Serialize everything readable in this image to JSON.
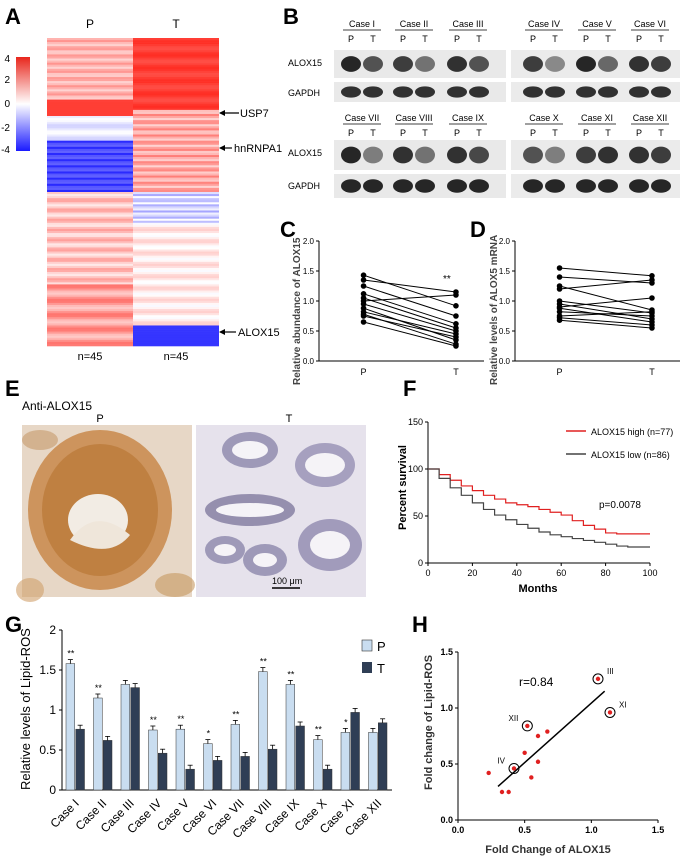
{
  "panels": {
    "a": "A",
    "b": "B",
    "c": "C",
    "d": "D",
    "e": "E",
    "f": "F",
    "g": "G",
    "h": "H"
  },
  "heatmap": {
    "columns": [
      "P",
      "T"
    ],
    "scale_ticks": [
      "4",
      "2",
      "0",
      "-2",
      "-4"
    ],
    "genes": [
      "USP7",
      "hnRNPA1",
      "ALOX15"
    ],
    "n_labels": [
      "n=45",
      "n=45"
    ]
  },
  "western": {
    "top_cases": [
      "Case I",
      "Case II",
      "Case III",
      "Case IV",
      "Case V",
      "Case VI"
    ],
    "bottom_cases": [
      "Case VII",
      "Case VIII",
      "Case IX",
      "Case X",
      "Case XI",
      "Case XII"
    ],
    "pt": [
      "P",
      "T"
    ],
    "rows": [
      "ALOX15",
      "GAPDH"
    ]
  },
  "panel_e": {
    "title": "Anti-ALOX15",
    "left": "P",
    "right": "T",
    "scalebar": "100 μm"
  },
  "chart_data": [
    {
      "id": "C",
      "type": "line",
      "title": "",
      "xlabel": "",
      "ylabel": "Relative abundance of ALOX15",
      "categories": [
        "P",
        "T"
      ],
      "ylim": [
        0,
        2.0
      ],
      "yticks": [
        "0.0",
        "0.5",
        "1.0",
        "1.5",
        "2.0"
      ],
      "annotation": "**",
      "pairs": [
        [
          1.43,
          0.92
        ],
        [
          1.35,
          1.15
        ],
        [
          1.25,
          0.75
        ],
        [
          1.12,
          0.62
        ],
        [
          1.05,
          0.55
        ],
        [
          1.0,
          1.1
        ],
        [
          0.95,
          0.5
        ],
        [
          0.88,
          0.35
        ],
        [
          0.82,
          0.45
        ],
        [
          0.78,
          0.28
        ],
        [
          0.75,
          0.4
        ],
        [
          0.65,
          0.25
        ]
      ]
    },
    {
      "id": "D",
      "type": "line",
      "xlabel": "",
      "ylabel": "Relative levels of ALOX5 mRNA",
      "categories": [
        "P",
        "T"
      ],
      "ylim": [
        0,
        2.0
      ],
      "yticks": [
        "0.0",
        "0.5",
        "1.0",
        "1.5",
        "2.0"
      ],
      "pairs": [
        [
          1.55,
          1.42
        ],
        [
          1.4,
          1.3
        ],
        [
          1.25,
          0.85
        ],
        [
          1.2,
          1.35
        ],
        [
          1.0,
          0.8
        ],
        [
          0.95,
          0.7
        ],
        [
          0.9,
          1.05
        ],
        [
          0.88,
          0.65
        ],
        [
          0.82,
          0.75
        ],
        [
          0.75,
          0.82
        ],
        [
          0.72,
          0.6
        ],
        [
          0.68,
          0.55
        ]
      ]
    },
    {
      "id": "F",
      "type": "line",
      "xlabel": "Months",
      "ylabel": "Percent survival",
      "xlim": [
        0,
        100
      ],
      "ylim": [
        0,
        150
      ],
      "xticks": [
        "0",
        "20",
        "40",
        "60",
        "80",
        "100"
      ],
      "yticks": [
        "0",
        "50",
        "100",
        "150"
      ],
      "pvalue": "p=0.0078",
      "series": [
        {
          "name": "ALOX15 high (n=77)",
          "color": "#e02020",
          "x": [
            0,
            5,
            10,
            15,
            20,
            25,
            30,
            35,
            40,
            45,
            50,
            55,
            60,
            65,
            70,
            75,
            80,
            85,
            90,
            95,
            100
          ],
          "y": [
            100,
            94,
            88,
            82,
            77,
            72,
            68,
            64,
            62,
            60,
            57,
            54,
            51,
            45,
            40,
            36,
            32,
            31,
            31,
            31,
            31
          ]
        },
        {
          "name": "ALOX15 low (n=86)",
          "color": "#444444",
          "x": [
            0,
            5,
            10,
            15,
            20,
            25,
            30,
            35,
            40,
            45,
            50,
            55,
            60,
            65,
            70,
            75,
            80,
            85,
            90,
            95,
            100
          ],
          "y": [
            100,
            90,
            80,
            72,
            64,
            57,
            51,
            46,
            41,
            37,
            33,
            30,
            28,
            26,
            24,
            22,
            20,
            18,
            17,
            17,
            17
          ]
        }
      ]
    },
    {
      "id": "G",
      "type": "bar",
      "ylabel": "Relative levels of Lipid-ROS",
      "ylim": [
        0,
        2
      ],
      "yticks": [
        "0",
        "0.5",
        "1",
        "1.5",
        "2"
      ],
      "categories": [
        "Case I",
        "Case II",
        "Case III",
        "Case IV",
        "Case V",
        "Case VI",
        "Case VII",
        "Case VIII",
        "Case IX",
        "Case X",
        "Case XI",
        "Case XII"
      ],
      "series": [
        {
          "name": "P",
          "color": "#c9ddf0",
          "values": [
            1.58,
            1.15,
            1.32,
            0.75,
            0.76,
            0.58,
            0.82,
            1.48,
            1.32,
            0.63,
            0.72,
            0.72
          ]
        },
        {
          "name": "T",
          "color": "#2f3e55",
          "values": [
            0.76,
            0.62,
            1.28,
            0.46,
            0.26,
            0.37,
            0.42,
            0.51,
            0.8,
            0.26,
            0.97,
            0.84
          ]
        }
      ],
      "significance": [
        "**",
        "**",
        "",
        "**",
        "**",
        "*",
        "**",
        "**",
        "**",
        "**",
        "*",
        ""
      ]
    },
    {
      "id": "H",
      "type": "scatter",
      "xlabel": "Fold Change of ALOX15",
      "ylabel": "Fold change of Lipid-ROS",
      "xlim": [
        0,
        1.5
      ],
      "ylim": [
        0,
        1.5
      ],
      "xticks": [
        "0.0",
        "0.5",
        "1.0",
        "1.5"
      ],
      "yticks": [
        "0.0",
        "0.5",
        "1.0",
        "1.5"
      ],
      "r": "r=0.84",
      "points": [
        [
          0.23,
          0.42
        ],
        [
          0.33,
          0.25
        ],
        [
          0.38,
          0.25
        ],
        [
          0.42,
          0.46
        ],
        [
          0.5,
          0.6
        ],
        [
          0.52,
          0.84
        ],
        [
          0.55,
          0.38
        ],
        [
          0.6,
          0.52
        ],
        [
          0.6,
          0.75
        ],
        [
          0.67,
          0.79
        ],
        [
          1.05,
          1.26
        ],
        [
          1.14,
          0.96
        ]
      ],
      "labels": [
        {
          "text": "III",
          "x": 1.05,
          "y": 1.26
        },
        {
          "text": "XI",
          "x": 1.14,
          "y": 0.96
        },
        {
          "text": "XII",
          "x": 0.52,
          "y": 0.84
        },
        {
          "text": "IV",
          "x": 0.42,
          "y": 0.46
        }
      ],
      "fit": [
        [
          0.3,
          0.3
        ],
        [
          1.1,
          1.15
        ]
      ]
    }
  ]
}
